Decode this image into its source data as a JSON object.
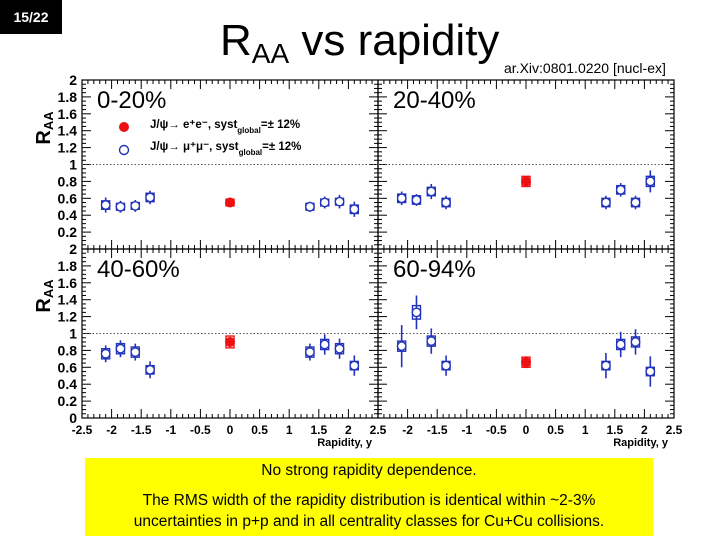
{
  "slide": {
    "page_number": "15/22",
    "title_main": "R",
    "title_sub": "AA",
    "title_rest": " vs rapidity",
    "reference": "ar.Xiv:0801.0220 [nucl-ex]"
  },
  "summary": {
    "line1": "No strong rapidity dependence.",
    "line2": "The RMS width of the rapidity distribution is identical within ~2-3%",
    "line3": "uncertainties in p+p and in all centrality classes for Cu+Cu collisions."
  },
  "colors": {
    "ee": "#ee1111",
    "mumu": "#2233bb",
    "frame": "#000000"
  },
  "chart_data": {
    "type": "scatter",
    "ylabel_main": "R",
    "ylabel_sub": "AA",
    "xlabel": "Rapidity, y",
    "xlim": [
      -2.5,
      2.5
    ],
    "ylim": [
      0,
      2
    ],
    "reference_line": 1,
    "x_tick_labels": [
      "-2.5",
      "-2",
      "-1.5",
      "-1",
      "-0.5",
      "0",
      "0.5",
      "1",
      "1.5",
      "2",
      "2.5"
    ],
    "x_tick_values": [
      -2.5,
      -2,
      -1.5,
      -1,
      -0.5,
      0,
      0.5,
      1,
      1.5,
      2,
      2.5
    ],
    "y_tick_labels": [
      "0",
      "0.2",
      "0.4",
      "0.6",
      "0.8",
      "1",
      "1.2",
      "1.4",
      "1.6",
      "1.8",
      "2"
    ],
    "y_tick_values": [
      0,
      0.2,
      0.4,
      0.6,
      0.8,
      1.0,
      1.2,
      1.4,
      1.6,
      1.8,
      2.0
    ],
    "legend": {
      "ee_label": "J/ψ→ e⁺e⁻, syst",
      "ee_sub": "global",
      "ee_value": "=± 12%",
      "mumu_label": "J/ψ→ μ⁺μ⁻, syst",
      "mumu_sub": "global",
      "mumu_value": "=± 12%"
    },
    "panels": [
      {
        "label": "0-20%",
        "ee": [
          {
            "x": 0,
            "y": 0.55,
            "err": 0.03,
            "sys": 0.04
          }
        ],
        "mumu": [
          {
            "x": -2.1,
            "y": 0.52,
            "err": 0.09,
            "sys": 0.05
          },
          {
            "x": -1.85,
            "y": 0.5,
            "err": 0.07,
            "sys": 0.04
          },
          {
            "x": -1.6,
            "y": 0.51,
            "err": 0.07,
            "sys": 0.04
          },
          {
            "x": -1.35,
            "y": 0.61,
            "err": 0.08,
            "sys": 0.05
          },
          {
            "x": 1.35,
            "y": 0.5,
            "err": 0.06,
            "sys": 0.04
          },
          {
            "x": 1.6,
            "y": 0.55,
            "err": 0.07,
            "sys": 0.04
          },
          {
            "x": 1.85,
            "y": 0.56,
            "err": 0.08,
            "sys": 0.04
          },
          {
            "x": 2.1,
            "y": 0.47,
            "err": 0.09,
            "sys": 0.05
          }
        ]
      },
      {
        "label": "20-40%",
        "ee": [
          {
            "x": 0,
            "y": 0.8,
            "err": 0.05,
            "sys": 0.06
          }
        ],
        "mumu": [
          {
            "x": -2.1,
            "y": 0.6,
            "err": 0.08,
            "sys": 0.05
          },
          {
            "x": -1.85,
            "y": 0.58,
            "err": 0.07,
            "sys": 0.05
          },
          {
            "x": -1.6,
            "y": 0.68,
            "err": 0.09,
            "sys": 0.05
          },
          {
            "x": -1.35,
            "y": 0.55,
            "err": 0.08,
            "sys": 0.05
          },
          {
            "x": 1.35,
            "y": 0.55,
            "err": 0.08,
            "sys": 0.05
          },
          {
            "x": 1.6,
            "y": 0.7,
            "err": 0.08,
            "sys": 0.05
          },
          {
            "x": 1.85,
            "y": 0.55,
            "err": 0.08,
            "sys": 0.05
          },
          {
            "x": 2.1,
            "y": 0.8,
            "err": 0.13,
            "sys": 0.06
          }
        ]
      },
      {
        "label": "40-60%",
        "ee": [
          {
            "x": 0,
            "y": 0.9,
            "err": 0.06,
            "sys": 0.07
          }
        ],
        "mumu": [
          {
            "x": -2.1,
            "y": 0.76,
            "err": 0.1,
            "sys": 0.06
          },
          {
            "x": -1.85,
            "y": 0.82,
            "err": 0.1,
            "sys": 0.06
          },
          {
            "x": -1.6,
            "y": 0.78,
            "err": 0.1,
            "sys": 0.06
          },
          {
            "x": -1.35,
            "y": 0.57,
            "err": 0.1,
            "sys": 0.05
          },
          {
            "x": 1.35,
            "y": 0.78,
            "err": 0.1,
            "sys": 0.06
          },
          {
            "x": 1.6,
            "y": 0.87,
            "err": 0.12,
            "sys": 0.06
          },
          {
            "x": 1.85,
            "y": 0.82,
            "err": 0.12,
            "sys": 0.06
          },
          {
            "x": 2.1,
            "y": 0.62,
            "err": 0.12,
            "sys": 0.05
          }
        ]
      },
      {
        "label": "60-94%",
        "ee": [
          {
            "x": 0,
            "y": 0.66,
            "err": 0.07,
            "sys": 0.06
          }
        ],
        "mumu": [
          {
            "x": -2.1,
            "y": 0.85,
            "err": 0.25,
            "sys": 0.06
          },
          {
            "x": -1.85,
            "y": 1.25,
            "err": 0.2,
            "sys": 0.08
          },
          {
            "x": -1.6,
            "y": 0.91,
            "err": 0.15,
            "sys": 0.06
          },
          {
            "x": -1.35,
            "y": 0.62,
            "err": 0.12,
            "sys": 0.05
          },
          {
            "x": 1.35,
            "y": 0.62,
            "err": 0.15,
            "sys": 0.05
          },
          {
            "x": 1.6,
            "y": 0.87,
            "err": 0.15,
            "sys": 0.06
          },
          {
            "x": 1.85,
            "y": 0.9,
            "err": 0.15,
            "sys": 0.06
          },
          {
            "x": 2.1,
            "y": 0.55,
            "err": 0.18,
            "sys": 0.05
          }
        ]
      }
    ]
  }
}
